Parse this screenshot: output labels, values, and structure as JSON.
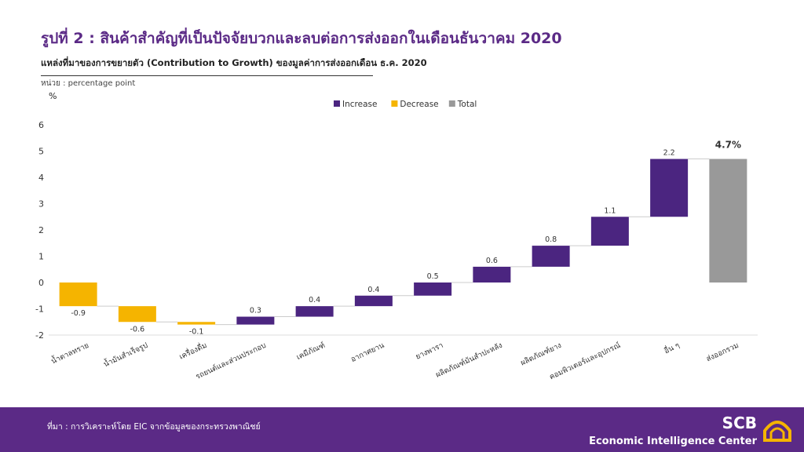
{
  "title": "รูปที่ 2 : สินค้าสำคัญที่เป็นปัจจัยบวกและลบต่อการส่งออกในเดือนธันวาคม  2020",
  "footer": {
    "source": "ที่มา : การวิเคราะห์โดย EIC จากข้อมูลของกระทรวงพาณิชย์",
    "logo_text": "SCB",
    "logo_subtext": "Economic Intelligence Center"
  },
  "chart_data": {
    "type": "waterfall",
    "title": "แหล่งที่มาของการขยายตัว (Contribution to Growth) ของมูลค่าการส่งออกเดือน ธ.ค. 2020",
    "unit": "หน่วย : percentage  point",
    "ylabel": "%",
    "ylim": [
      -2,
      6
    ],
    "yticks": [
      "6",
      "5",
      "4",
      "3",
      "2",
      "1",
      "0",
      "-1",
      "-2"
    ],
    "legend": [
      {
        "name": "Increase",
        "color": "#4b2580"
      },
      {
        "name": "Decrease",
        "color": "#f5b400"
      },
      {
        "name": "Total",
        "color": "#999999"
      }
    ],
    "legend_position": "top-center",
    "grid": false,
    "categories": [
      "น้ำตาลทราย",
      "น้ำมันสำเร็จรูป",
      "เครื่องดื่ม",
      "รถยนต์และส่วนประกอบ",
      "เคมีภัณฑ์",
      "อากาศยาน",
      "ยางพารา",
      "ผลิตภัณฑ์มันสำปะหลัง",
      "ผลิตภัณฑ์ยาง",
      "คอมพิวเตอร์และอุปกรณ์",
      "อื่น ๆ",
      "ส่งออกรวม"
    ],
    "values": [
      -0.9,
      -0.6,
      -0.1,
      0.3,
      0.4,
      0.4,
      0.5,
      0.6,
      0.8,
      1.1,
      2.2,
      4.7
    ],
    "labels": [
      "-0.9",
      "-0.6",
      "-0.1",
      "0.3",
      "0.4",
      "0.4",
      "0.5",
      "0.6",
      "0.8",
      "1.1",
      "2.2",
      "4.7%"
    ],
    "total_index": 11
  }
}
